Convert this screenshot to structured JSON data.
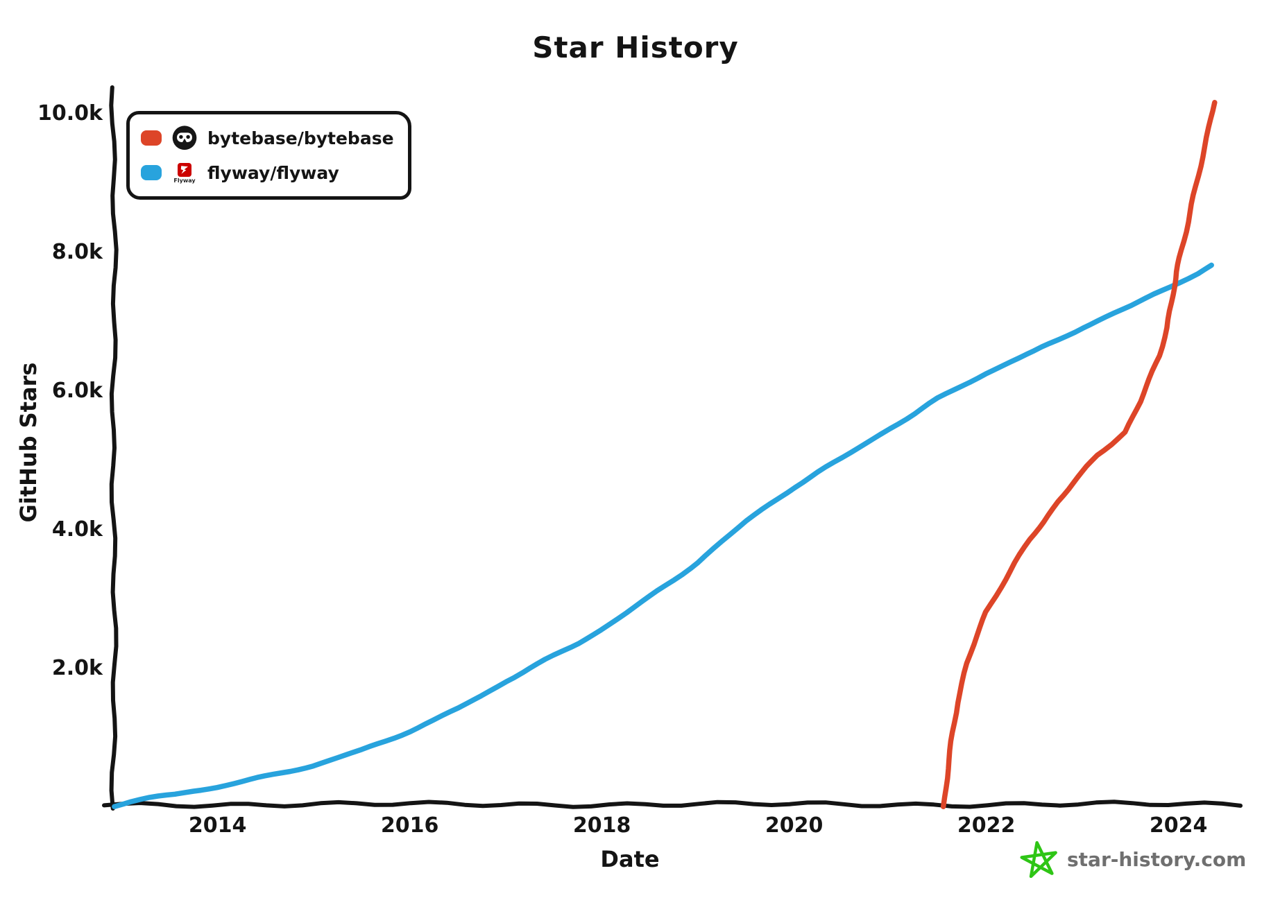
{
  "title": "Star History",
  "legend": {
    "items": [
      {
        "label": "bytebase/bytebase",
        "color": "#dd4528",
        "icon": "bytebase-avatar"
      },
      {
        "label": "flyway/flyway",
        "color": "#28a3dd",
        "icon": "flyway-logo"
      }
    ],
    "flyway_logo_text": "Flyway"
  },
  "watermark": {
    "text": "star-history.com",
    "star_color": "#2ec515",
    "text_color": "#6f6f6f"
  },
  "colors": {
    "axis": "#141414",
    "bytebase_line": "#dd4528",
    "flyway_line": "#28a3dd",
    "flyway_logo_red": "#cc0200"
  },
  "chart_data": {
    "type": "line",
    "title": "Star History",
    "xlabel": "Date",
    "ylabel": "GitHub Stars",
    "grid": false,
    "legend_position": "top-left",
    "xlim": [
      2012.92,
      2024.45
    ],
    "ylim": [
      0,
      10300
    ],
    "x_ticks": [
      2014,
      2016,
      2018,
      2020,
      2022,
      2024
    ],
    "x_tick_labels": [
      "2014",
      "2016",
      "2018",
      "2020",
      "2022",
      "2024"
    ],
    "y_ticks": [
      2000,
      4000,
      6000,
      8000,
      10000
    ],
    "y_tick_labels": [
      "2.0k",
      "4.0k",
      "6.0k",
      "8.0k",
      "10.0k"
    ],
    "series": [
      {
        "name": "bytebase/bytebase",
        "color": "#dd4528",
        "points": [
          [
            2021.56,
            0
          ],
          [
            2021.6,
            520
          ],
          [
            2021.65,
            1060
          ],
          [
            2021.7,
            1500
          ],
          [
            2021.8,
            2050
          ],
          [
            2021.9,
            2450
          ],
          [
            2022.0,
            2800
          ],
          [
            2022.15,
            3160
          ],
          [
            2022.3,
            3500
          ],
          [
            2022.45,
            3830
          ],
          [
            2022.6,
            4100
          ],
          [
            2022.75,
            4400
          ],
          [
            2022.9,
            4650
          ],
          [
            2023.0,
            4800
          ],
          [
            2023.15,
            5050
          ],
          [
            2023.3,
            5220
          ],
          [
            2023.45,
            5400
          ],
          [
            2023.6,
            5820
          ],
          [
            2023.7,
            6150
          ],
          [
            2023.8,
            6500
          ],
          [
            2023.88,
            6900
          ],
          [
            2023.93,
            7250
          ],
          [
            2023.98,
            7700
          ],
          [
            2024.03,
            8020
          ],
          [
            2024.1,
            8420
          ],
          [
            2024.18,
            8920
          ],
          [
            2024.25,
            9360
          ],
          [
            2024.32,
            9800
          ],
          [
            2024.37,
            10140
          ]
        ]
      },
      {
        "name": "flyway/flyway",
        "color": "#28a3dd",
        "points": [
          [
            2012.92,
            0
          ],
          [
            2013.1,
            60
          ],
          [
            2013.3,
            110
          ],
          [
            2013.55,
            160
          ],
          [
            2013.75,
            215
          ],
          [
            2014.0,
            275
          ],
          [
            2014.25,
            345
          ],
          [
            2014.5,
            420
          ],
          [
            2014.75,
            500
          ],
          [
            2015.0,
            585
          ],
          [
            2015.25,
            690
          ],
          [
            2015.5,
            800
          ],
          [
            2015.75,
            935
          ],
          [
            2016.0,
            1080
          ],
          [
            2016.25,
            1230
          ],
          [
            2016.5,
            1400
          ],
          [
            2016.75,
            1590
          ],
          [
            2017.0,
            1800
          ],
          [
            2017.25,
            1980
          ],
          [
            2017.5,
            2160
          ],
          [
            2017.75,
            2340
          ],
          [
            2018.0,
            2550
          ],
          [
            2018.25,
            2780
          ],
          [
            2018.5,
            3010
          ],
          [
            2018.75,
            3260
          ],
          [
            2019.0,
            3520
          ],
          [
            2019.25,
            3810
          ],
          [
            2019.5,
            4100
          ],
          [
            2019.75,
            4350
          ],
          [
            2020.0,
            4600
          ],
          [
            2020.25,
            4810
          ],
          [
            2020.5,
            5010
          ],
          [
            2020.75,
            5230
          ],
          [
            2021.0,
            5450
          ],
          [
            2021.25,
            5650
          ],
          [
            2021.5,
            5870
          ],
          [
            2021.75,
            6060
          ],
          [
            2022.0,
            6240
          ],
          [
            2022.25,
            6400
          ],
          [
            2022.5,
            6550
          ],
          [
            2022.75,
            6720
          ],
          [
            2023.0,
            6900
          ],
          [
            2023.25,
            7050
          ],
          [
            2023.5,
            7200
          ],
          [
            2023.75,
            7380
          ],
          [
            2024.0,
            7550
          ],
          [
            2024.2,
            7680
          ],
          [
            2024.35,
            7790
          ]
        ]
      }
    ]
  }
}
